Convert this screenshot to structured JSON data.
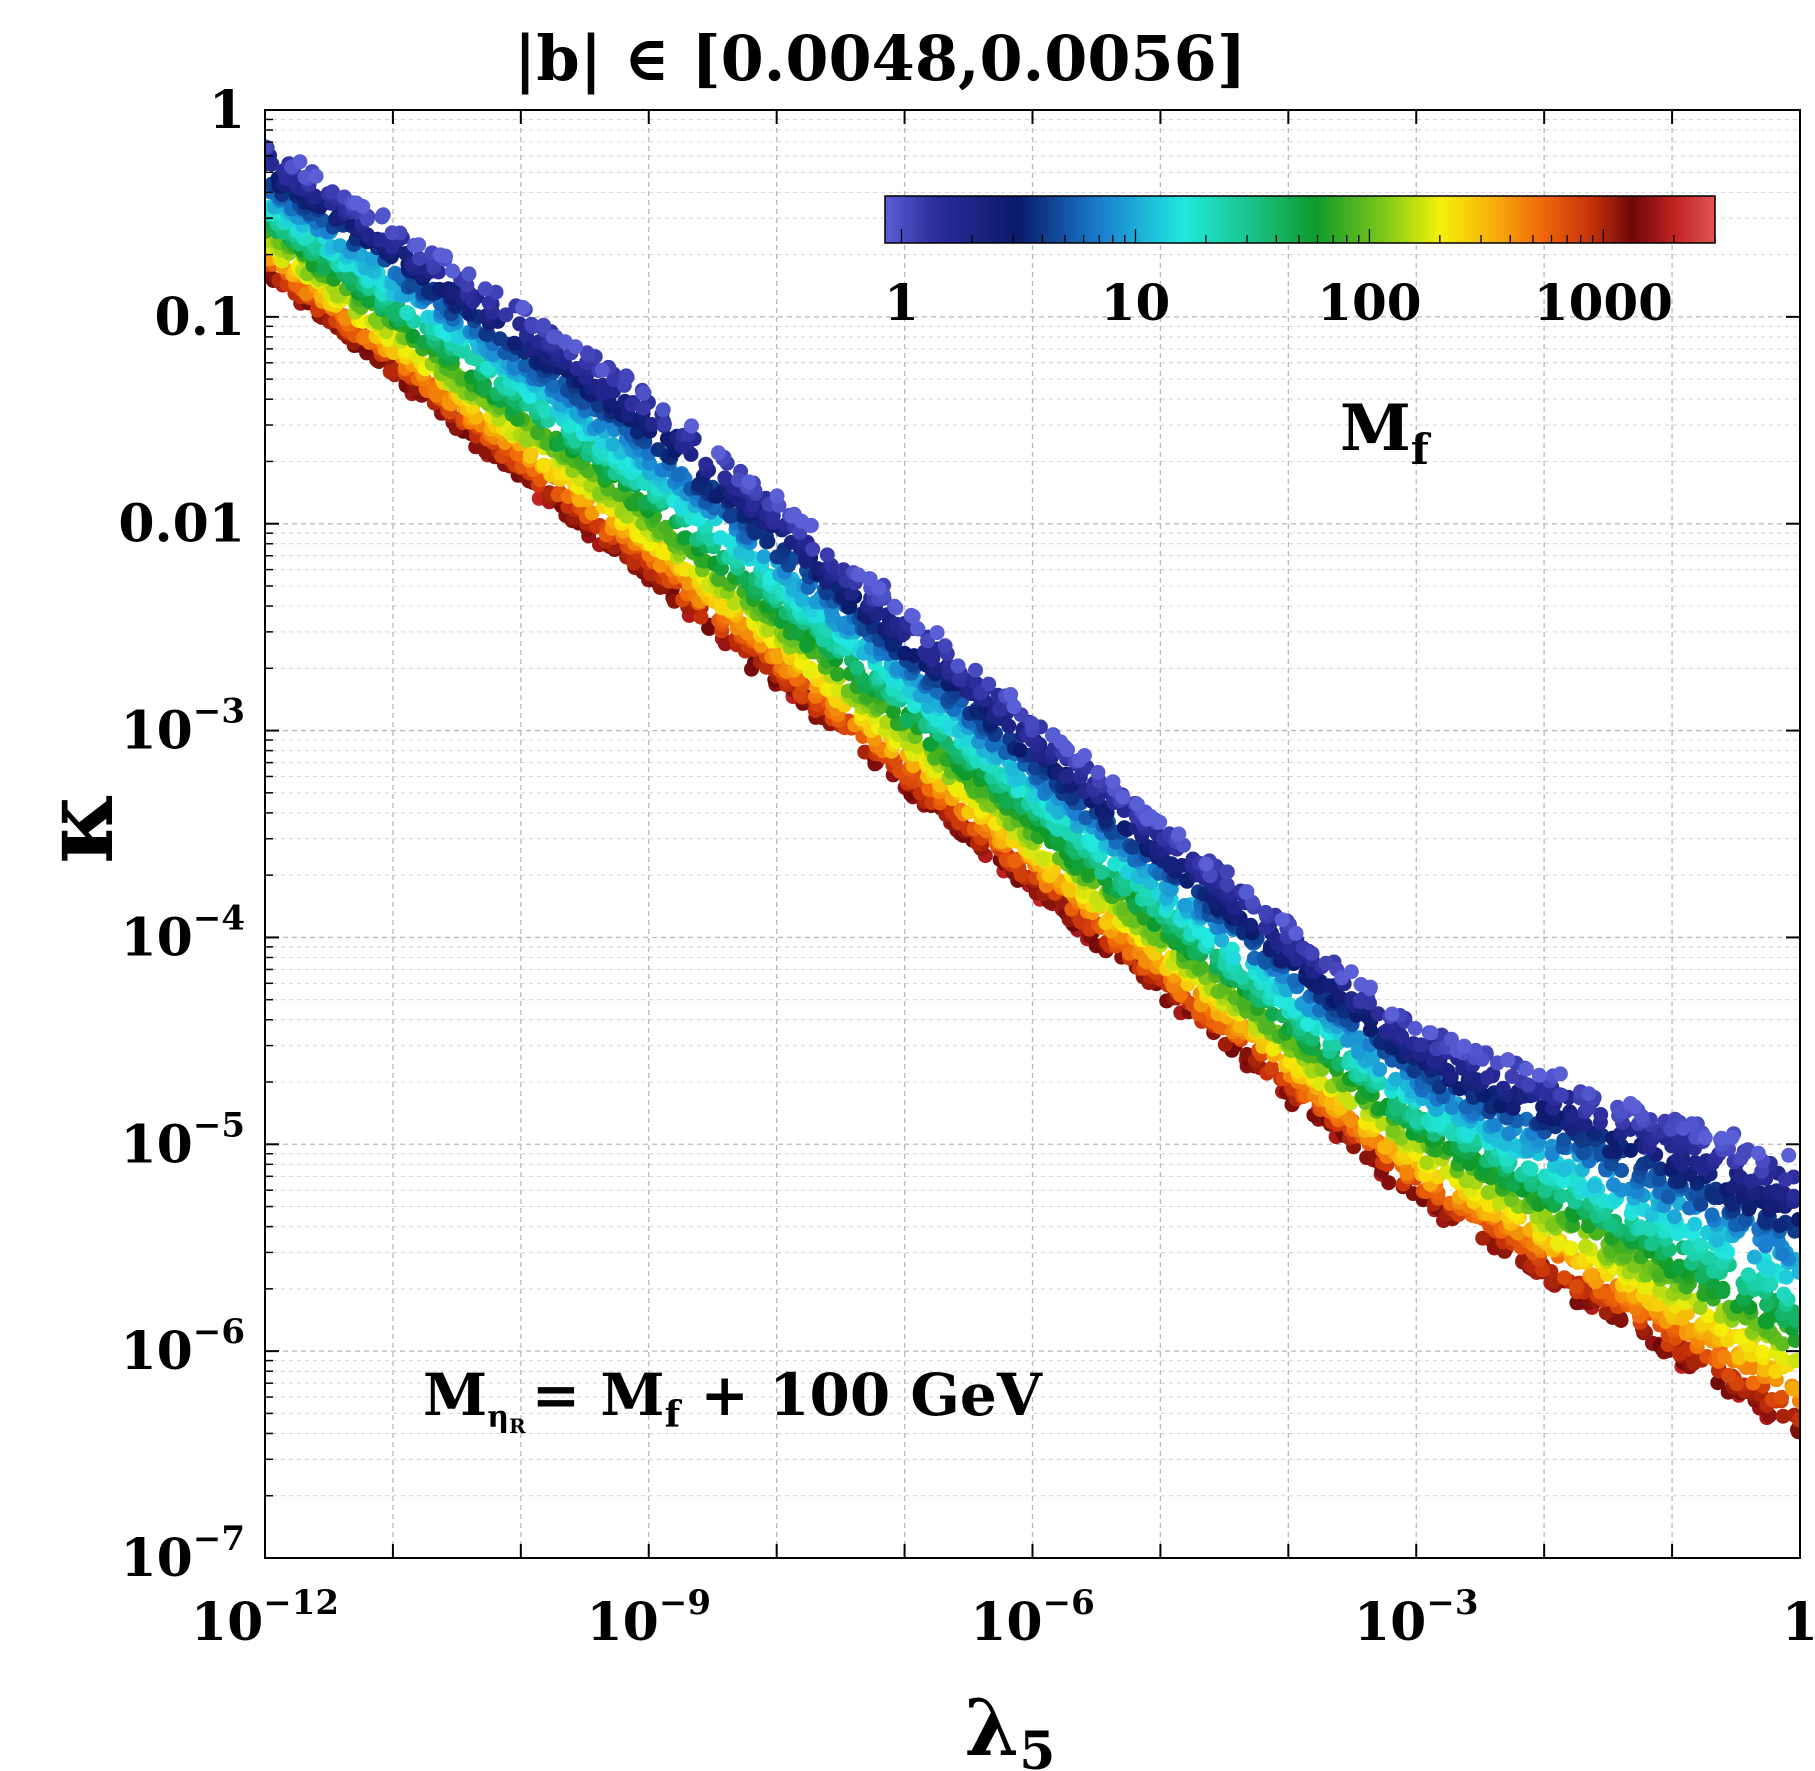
{
  "colors": {
    "background": "#ffffff",
    "axis": "#000000",
    "grid": "#bbbbbb",
    "colormap": [
      "#5a5fd6",
      "#2c2c9c",
      "#0a1a6a",
      "#1a7fd0",
      "#22e8e0",
      "#18c48a",
      "#0f9a2a",
      "#7cc81a",
      "#f5f00a",
      "#f7b30a",
      "#f06a0a",
      "#c8320a",
      "#6e0808",
      "#c02020",
      "#e05555"
    ]
  },
  "chart_data": {
    "type": "scatter",
    "title": "|b| ∈ [0.0048,0.0056]",
    "xlabel": {
      "base": "λ",
      "sub": "5"
    },
    "ylabel": "κ",
    "xscale": "log",
    "yscale": "log",
    "xlim": [
      1e-12,
      1
    ],
    "ylim": [
      1e-07,
      1
    ],
    "grid": true,
    "x_ticks": [
      {
        "value": 1e-12,
        "base": "10",
        "exp": "−12"
      },
      {
        "value": 1e-09,
        "base": "10",
        "exp": "−9"
      },
      {
        "value": 1e-06,
        "base": "10",
        "exp": "−6"
      },
      {
        "value": 0.001,
        "base": "10",
        "exp": "−3"
      },
      {
        "value": 1,
        "base": "1",
        "exp": ""
      }
    ],
    "y_ticks": [
      {
        "value": 1,
        "base": "1",
        "exp": ""
      },
      {
        "value": 0.1,
        "base": "0.1",
        "exp": ""
      },
      {
        "value": 0.01,
        "base": "0.01",
        "exp": ""
      },
      {
        "value": 0.001,
        "base": "10",
        "exp": "−3"
      },
      {
        "value": 0.0001,
        "base": "10",
        "exp": "−4"
      },
      {
        "value": 1e-05,
        "base": "10",
        "exp": "−5"
      },
      {
        "value": 1e-06,
        "base": "10",
        "exp": "−6"
      },
      {
        "value": 1e-07,
        "base": "10",
        "exp": "−7"
      }
    ],
    "colorbar": {
      "label": {
        "base": "M",
        "sub": "f"
      },
      "scale": "log",
      "range": [
        0.85,
        3000
      ],
      "orientation": "horizontal",
      "placement": "top-right",
      "ticks": [
        {
          "value": 1,
          "label": "1"
        },
        {
          "value": 10,
          "label": "10"
        },
        {
          "value": 100,
          "label": "100"
        },
        {
          "value": 1000,
          "label": "1000"
        }
      ]
    },
    "annotation": {
      "m": "M",
      "sub": "η",
      "subsub": "R",
      "rest": "= M",
      "sub2": "f",
      "tail": " + 100 GeV"
    },
    "band": {
      "description_points": [
        {
          "lambda5": 1e-12,
          "kappa_Mf_1": 0.7,
          "kappa_Mf_1000": 0.16
        },
        {
          "lambda5": 1e-09,
          "kappa_Mf_1": 0.045,
          "kappa_Mf_1000": 0.0052
        },
        {
          "lambda5": 1e-06,
          "kappa_Mf_1": 0.0012,
          "kappa_Mf_1000": 0.000165
        },
        {
          "lambda5": 0.001,
          "kappa_Mf_1": 3.8e-05,
          "kappa_Mf_1000": 5.3e-06
        },
        {
          "lambda5": 1,
          "kappa_Mf_1": 8.5e-06,
          "kappa_Mf_1000": 3.8e-07
        }
      ]
    }
  }
}
